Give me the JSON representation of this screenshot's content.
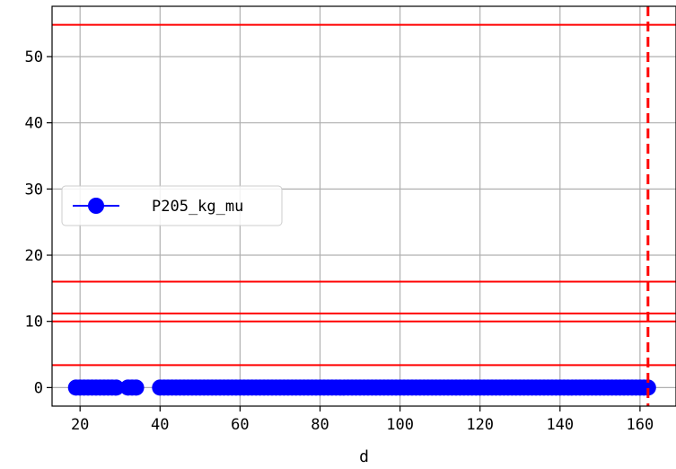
{
  "chart_data": {
    "type": "line",
    "title": "",
    "xlabel": "d",
    "ylabel": "",
    "xlim": [
      13,
      169
    ],
    "ylim": [
      -2.8,
      57.6
    ],
    "xticks": [
      20,
      40,
      60,
      80,
      100,
      120,
      140,
      160
    ],
    "yticks": [
      0,
      10,
      20,
      30,
      40,
      50
    ],
    "grid": true,
    "legend_position": "center-left",
    "series": [
      {
        "name": "P205_kg_mu",
        "color": "#0000ff",
        "marker": "circle",
        "x_ranges": [
          [
            19,
            29
          ],
          [
            32,
            34
          ],
          [
            40,
            162
          ]
        ],
        "y": 0
      }
    ],
    "horizontal_lines": [
      {
        "y": 54.8,
        "color": "#ff0000",
        "style": "solid"
      },
      {
        "y": 16.0,
        "color": "#ff0000",
        "style": "solid"
      },
      {
        "y": 11.2,
        "color": "#ff0000",
        "style": "solid"
      },
      {
        "y": 10.0,
        "color": "#ff0000",
        "style": "solid"
      },
      {
        "y": 3.4,
        "color": "#ff0000",
        "style": "solid"
      }
    ],
    "vertical_lines": [
      {
        "x": 162,
        "color": "#ff0000",
        "style": "dashed"
      }
    ]
  }
}
